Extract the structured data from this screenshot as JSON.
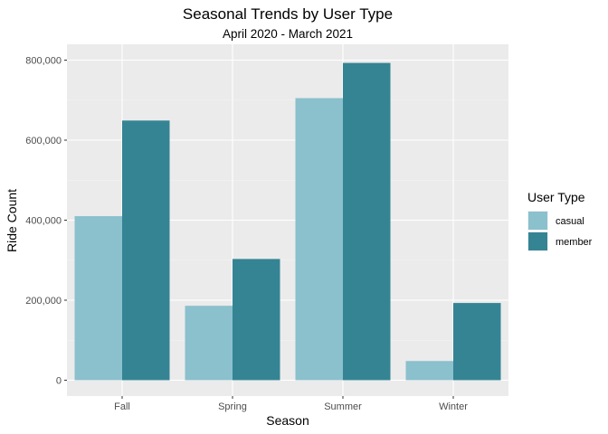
{
  "chart_data": {
    "type": "bar",
    "title": "Seasonal Trends by User Type",
    "subtitle": "April 2020 - March 2021",
    "xlabel": "Season",
    "ylabel": "Ride Count",
    "categories": [
      "Fall",
      "Spring",
      "Summer",
      "Winter"
    ],
    "series": [
      {
        "name": "casual",
        "color": "#8bc0cd",
        "values": [
          410000,
          186000,
          705000,
          48000
        ]
      },
      {
        "name": "member",
        "color": "#348494",
        "values": [
          649000,
          303000,
          793000,
          193000
        ]
      }
    ],
    "ylim": [
      0,
      800000
    ],
    "y_ticks": [
      0,
      200000,
      400000,
      600000,
      800000
    ],
    "y_tick_labels": [
      "0",
      "200,000",
      "400,000",
      "600,000",
      "800,000"
    ],
    "grid": true,
    "legend": {
      "title": "User Type",
      "position": "right"
    }
  }
}
